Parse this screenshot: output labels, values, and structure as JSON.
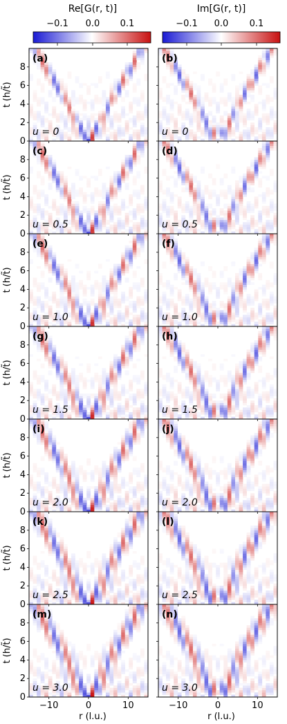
{
  "chart_data": {
    "type": "heatmap",
    "colorbars": [
      {
        "title": "Re[G(r, t)]",
        "ticks": [
          "−0.1",
          "0.0",
          "0.1"
        ],
        "range": [
          -0.18,
          0.18
        ]
      },
      {
        "title": "Im[G(r, t)]",
        "ticks": [
          "−0.1",
          "0.0",
          "0.1"
        ],
        "range": [
          -0.18,
          0.18
        ]
      }
    ],
    "colormap": {
      "negative": "#1a1ad4",
      "zero": "#ffffff",
      "positive": "#c81010"
    },
    "xlabel": "r (l.u.)",
    "ylabel": "t (h/t̃)",
    "xticks": [
      "−10",
      "0",
      "10"
    ],
    "yticks": [
      "0",
      "2",
      "4",
      "6",
      "8"
    ],
    "xlim": [
      -15,
      15
    ],
    "ylim": [
      0,
      10
    ],
    "panels": [
      {
        "label": "(a)",
        "param": "u = 0",
        "column": "Re",
        "row": 0
      },
      {
        "label": "(b)",
        "param": "u = 0",
        "column": "Im",
        "row": 0
      },
      {
        "label": "(c)",
        "param": "u = 0.5",
        "column": "Re",
        "row": 1
      },
      {
        "label": "(d)",
        "param": "u = 0.5",
        "column": "Im",
        "row": 1
      },
      {
        "label": "(e)",
        "param": "u = 1.0",
        "column": "Re",
        "row": 2
      },
      {
        "label": "(f)",
        "param": "u = 1.0",
        "column": "Im",
        "row": 2
      },
      {
        "label": "(g)",
        "param": "u = 1.5",
        "column": "Re",
        "row": 3
      },
      {
        "label": "(h)",
        "param": "u = 1.5",
        "column": "Im",
        "row": 3
      },
      {
        "label": "(i)",
        "param": "u = 2.0",
        "column": "Re",
        "row": 4
      },
      {
        "label": "(j)",
        "param": "u = 2.0",
        "column": "Im",
        "row": 4
      },
      {
        "label": "(k)",
        "param": "u = 2.5",
        "column": "Re",
        "row": 5
      },
      {
        "label": "(l)",
        "param": "u = 2.5",
        "column": "Im",
        "row": 5
      },
      {
        "label": "(m)",
        "param": "u = 3.0",
        "column": "Re",
        "row": 6
      },
      {
        "label": "(n)",
        "param": "u = 3.0",
        "column": "Im",
        "row": 6
      }
    ]
  }
}
